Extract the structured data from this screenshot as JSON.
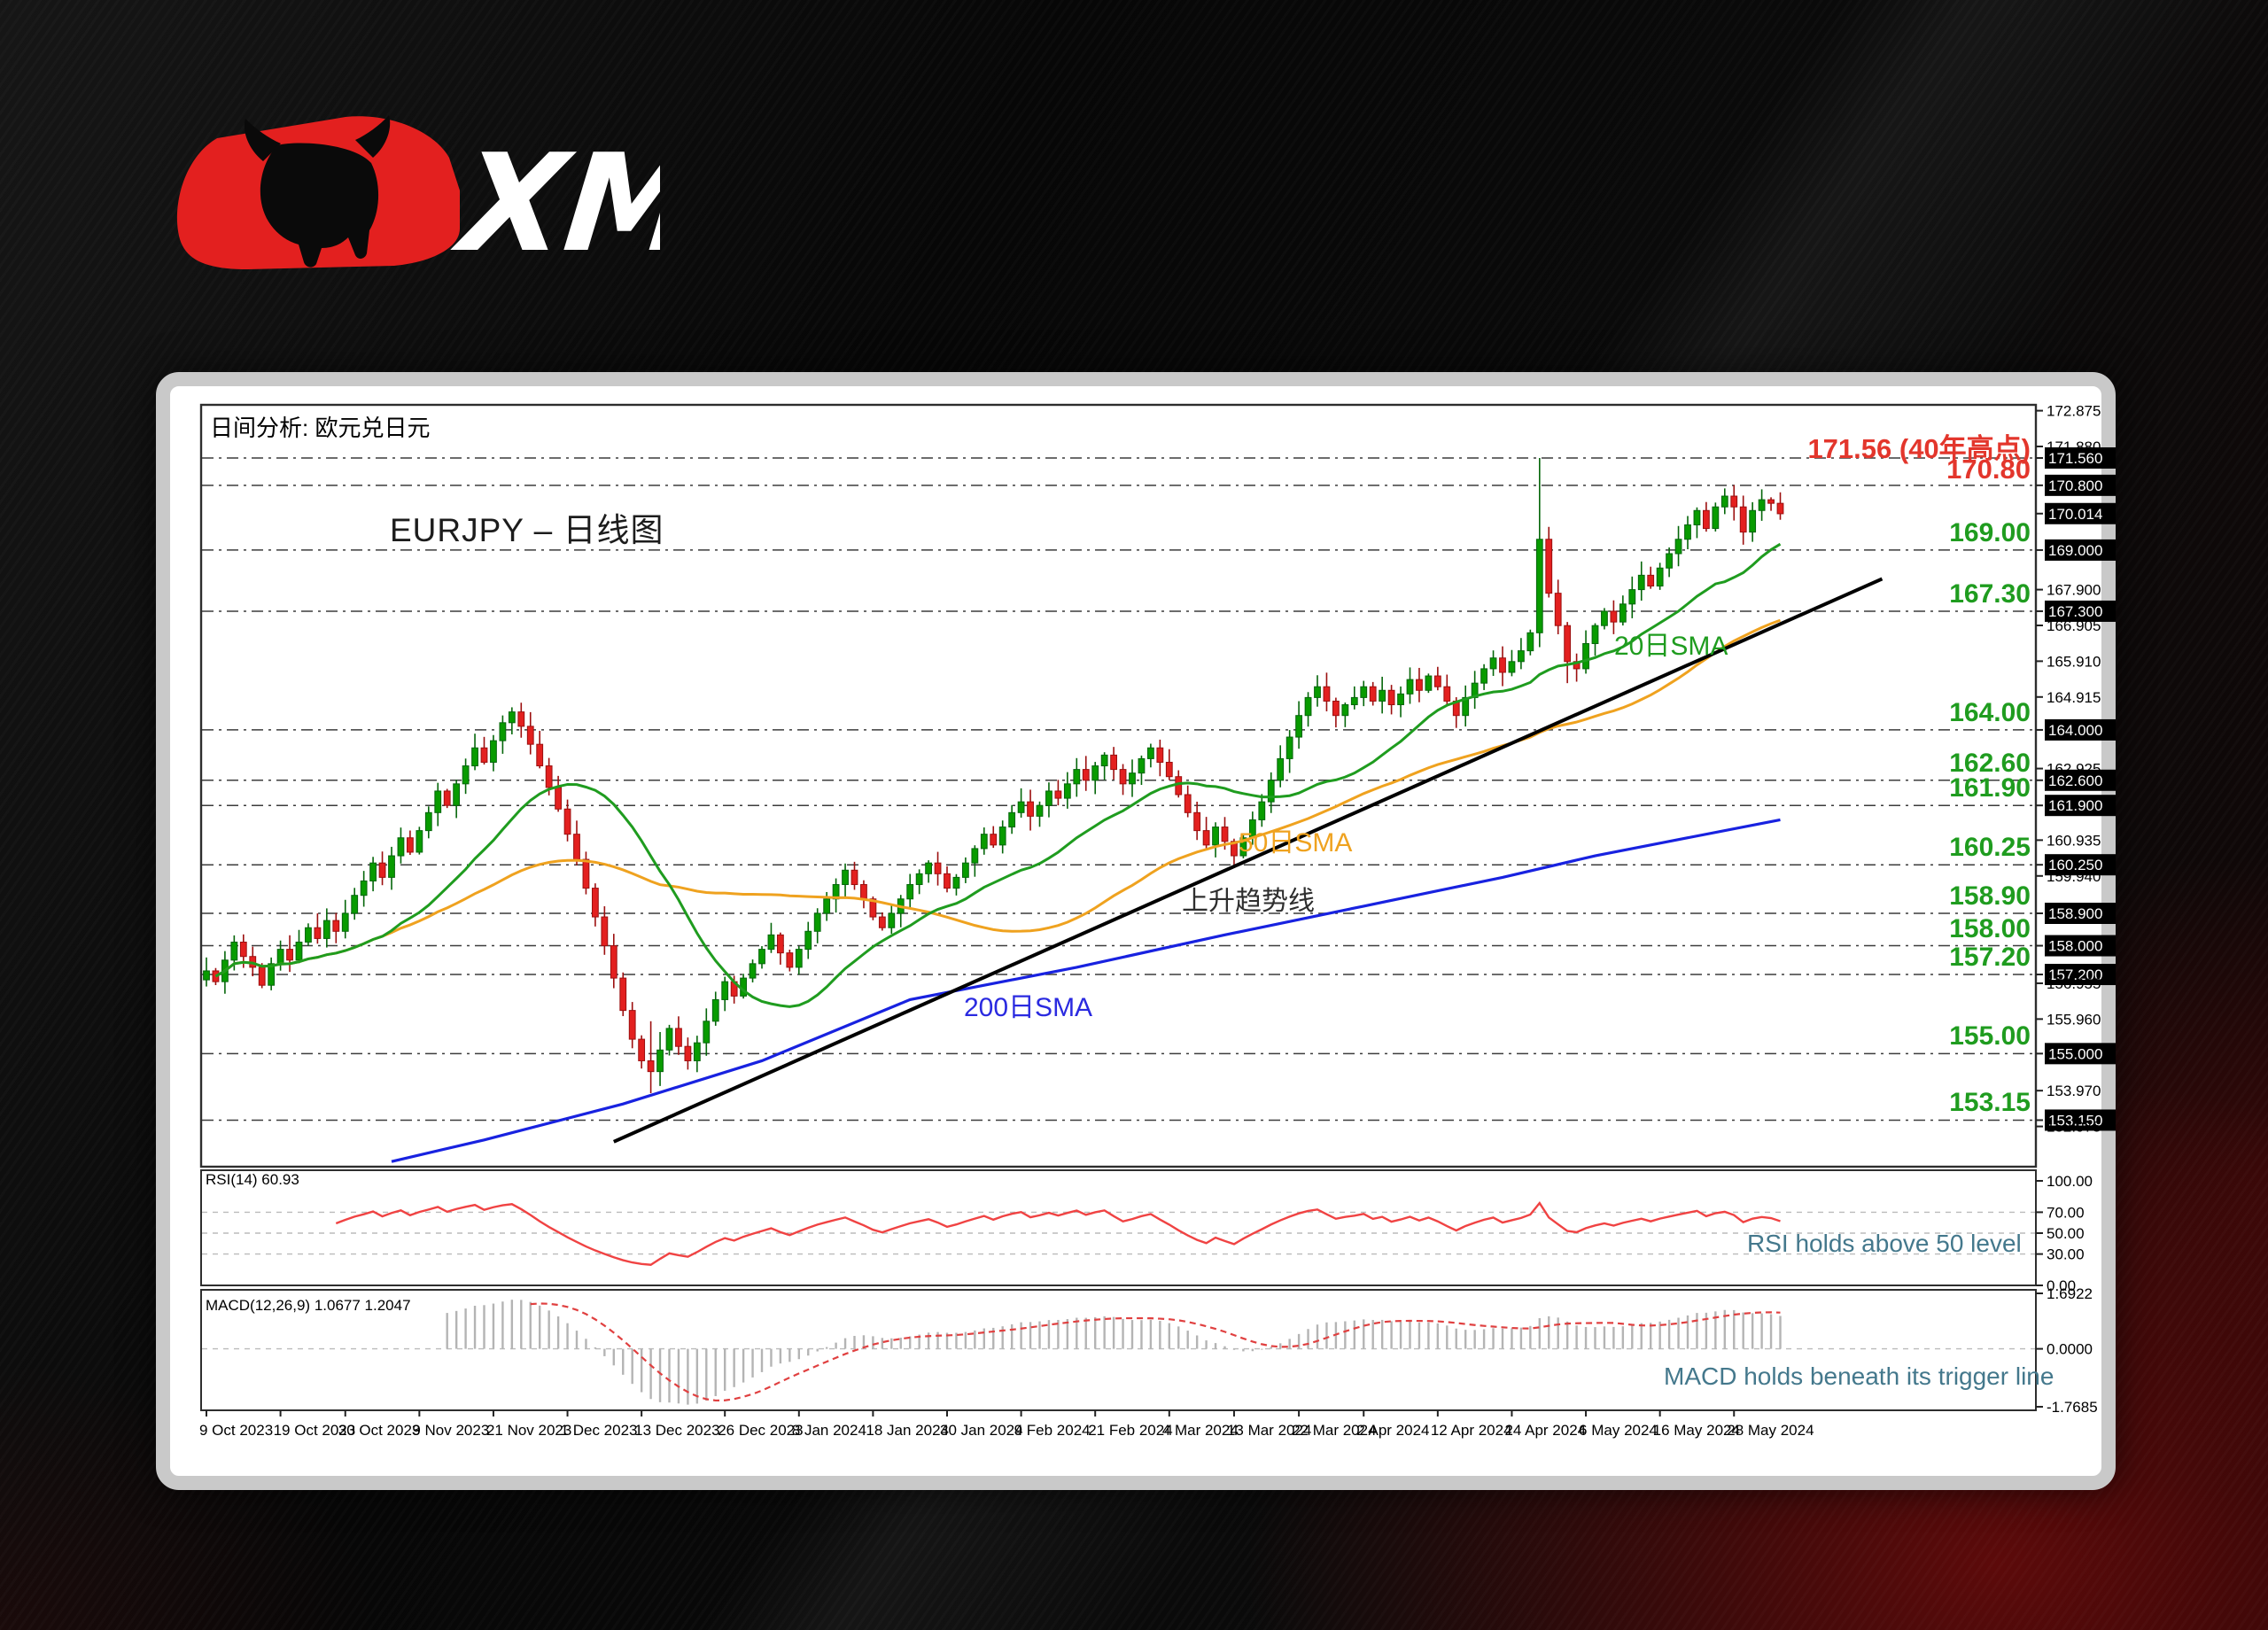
{
  "brand": {
    "name": "XM",
    "logo_mark": "bull-icon",
    "accent_red": "#e3201f"
  },
  "header": {
    "analysis_label": "日间分析: 欧元兑日元",
    "chart_title": "EURJPY – 日线图"
  },
  "annotations": {
    "sma20": "20日SMA",
    "sma50": "50日SMA",
    "sma200": "200日SMA",
    "trendline": "上升趋势线",
    "rsi_note": "RSI holds above 50 level",
    "macd_note": "MACD holds beneath its trigger line"
  },
  "indicators": {
    "rsi_label": "RSI(14) 60.93",
    "macd_label": "MACD(12,26,9) 1.0677 1.2047"
  },
  "levels": [
    {
      "text": "171.56 (40年高点)",
      "price": 171.56,
      "color": "red"
    },
    {
      "text": "170.80",
      "price": 170.8,
      "color": "red"
    },
    {
      "text": "169.00",
      "price": 169.0,
      "color": "green"
    },
    {
      "text": "167.30",
      "price": 167.3,
      "color": "green"
    },
    {
      "text": "164.00",
      "price": 164.0,
      "color": "green"
    },
    {
      "text": "162.60",
      "price": 162.6,
      "color": "green"
    },
    {
      "text": "161.90",
      "price": 161.9,
      "color": "green"
    },
    {
      "text": "160.25",
      "price": 160.25,
      "color": "green"
    },
    {
      "text": "158.90",
      "price": 158.9,
      "color": "green"
    },
    {
      "text": "158.00",
      "price": 158.0,
      "color": "green"
    },
    {
      "text": "157.20",
      "price": 157.2,
      "color": "green"
    },
    {
      "text": "155.00",
      "price": 155.0,
      "color": "green"
    },
    {
      "text": "153.15",
      "price": 153.15,
      "color": "green"
    }
  ],
  "chart_data": {
    "type": "candlestick",
    "symbol": "EURJPY",
    "timeframe": "daily",
    "grid_levels": [
      171.56,
      170.8,
      169.0,
      167.3,
      164.0,
      162.6,
      161.9,
      160.25,
      158.9,
      158.0,
      157.2,
      155.0,
      153.15
    ],
    "price_ticks": [
      {
        "label": "172.875",
        "price": 172.875,
        "badge": false
      },
      {
        "label": "171.880",
        "price": 171.88,
        "badge": false
      },
      {
        "label": "171.560",
        "price": 171.56,
        "badge": true
      },
      {
        "label": "170.800",
        "price": 170.8,
        "badge": true
      },
      {
        "label": "170.014",
        "price": 170.014,
        "badge": true
      },
      {
        "label": "169.000",
        "price": 169.0,
        "badge": true
      },
      {
        "label": "167.900",
        "price": 167.9,
        "badge": false
      },
      {
        "label": "167.300",
        "price": 167.3,
        "badge": true
      },
      {
        "label": "166.905",
        "price": 166.905,
        "badge": false
      },
      {
        "label": "165.910",
        "price": 165.91,
        "badge": false
      },
      {
        "label": "164.915",
        "price": 164.915,
        "badge": false
      },
      {
        "label": "164.000",
        "price": 164.0,
        "badge": true
      },
      {
        "label": "162.925",
        "price": 162.925,
        "badge": false
      },
      {
        "label": "162.600",
        "price": 162.6,
        "badge": true
      },
      {
        "label": "161.900",
        "price": 161.9,
        "badge": true
      },
      {
        "label": "160.935",
        "price": 160.935,
        "badge": false
      },
      {
        "label": "160.250",
        "price": 160.25,
        "badge": true
      },
      {
        "label": "159.940",
        "price": 159.94,
        "badge": false
      },
      {
        "label": "158.900",
        "price": 158.9,
        "badge": true
      },
      {
        "label": "158.000",
        "price": 158.0,
        "badge": true
      },
      {
        "label": "157.200",
        "price": 157.2,
        "badge": true
      },
      {
        "label": "156.955",
        "price": 156.955,
        "badge": false
      },
      {
        "label": "155.960",
        "price": 155.96,
        "badge": false
      },
      {
        "label": "155.000",
        "price": 155.0,
        "badge": true
      },
      {
        "label": "153.970",
        "price": 153.97,
        "badge": false
      },
      {
        "label": "153.150",
        "price": 153.15,
        "badge": true
      },
      {
        "label": "152.975",
        "price": 152.975,
        "badge": false
      }
    ],
    "rsi_ticks": [
      {
        "label": "100.00",
        "value": 100
      },
      {
        "label": "70.00",
        "value": 70
      },
      {
        "label": "50.00",
        "value": 50
      },
      {
        "label": "30.00",
        "value": 30
      },
      {
        "label": "0.00",
        "value": 0
      }
    ],
    "macd_ticks": [
      {
        "label": "1.6922",
        "value": 1.6922
      },
      {
        "label": "0.0000",
        "value": 0.0
      },
      {
        "label": "-1.7685",
        "value": -1.7685
      }
    ],
    "x_ticks": [
      {
        "label": "9 Oct 2023",
        "day": 0
      },
      {
        "label": "19 Oct 2023",
        "day": 8
      },
      {
        "label": "30 Oct 2023",
        "day": 15
      },
      {
        "label": "9 Nov 2023",
        "day": 23
      },
      {
        "label": "21 Nov 2023",
        "day": 31
      },
      {
        "label": "1 Dec 2023",
        "day": 39
      },
      {
        "label": "13 Dec 2023",
        "day": 47
      },
      {
        "label": "26 Dec 2023",
        "day": 56
      },
      {
        "label": "8 Jan 2024",
        "day": 64
      },
      {
        "label": "18 Jan 2024",
        "day": 72
      },
      {
        "label": "30 Jan 2024",
        "day": 80
      },
      {
        "label": "9 Feb 2024",
        "day": 88
      },
      {
        "label": "21 Feb 2024",
        "day": 96
      },
      {
        "label": "4 Mar 2024",
        "day": 104
      },
      {
        "label": "13 Mar 2024",
        "day": 111
      },
      {
        "label": "22 Mar 2024",
        "day": 118
      },
      {
        "label": "2 Apr 2024",
        "day": 125
      },
      {
        "label": "12 Apr 2024",
        "day": 133
      },
      {
        "label": "24 Apr 2024",
        "day": 141
      },
      {
        "label": "6 May 2024",
        "day": 149
      },
      {
        "label": "16 May 2024",
        "day": 157
      },
      {
        "label": "28 May 2024",
        "day": 165
      }
    ],
    "closes": [
      157.3,
      157.0,
      157.6,
      158.1,
      157.7,
      157.4,
      156.9,
      157.5,
      157.9,
      157.6,
      158.1,
      158.5,
      158.2,
      158.7,
      158.4,
      158.9,
      159.4,
      159.8,
      160.3,
      159.9,
      160.5,
      161.0,
      160.6,
      161.2,
      161.7,
      162.3,
      161.9,
      162.5,
      163.0,
      163.5,
      163.1,
      163.7,
      164.2,
      164.5,
      164.1,
      163.6,
      163.0,
      162.4,
      161.8,
      161.1,
      160.4,
      159.6,
      158.8,
      158.0,
      157.1,
      156.2,
      155.4,
      154.8,
      154.5,
      155.1,
      155.7,
      155.2,
      154.8,
      155.3,
      155.9,
      156.5,
      157.0,
      156.6,
      157.1,
      157.5,
      157.9,
      158.3,
      157.8,
      157.4,
      157.9,
      158.4,
      158.9,
      159.3,
      159.7,
      160.1,
      159.7,
      159.3,
      158.8,
      158.5,
      158.9,
      159.3,
      159.7,
      160.0,
      160.3,
      160.0,
      159.6,
      159.9,
      160.3,
      160.7,
      161.1,
      160.8,
      161.3,
      161.7,
      162.0,
      161.6,
      161.9,
      162.3,
      162.1,
      162.5,
      162.9,
      162.6,
      163.0,
      163.3,
      162.9,
      162.5,
      162.8,
      163.2,
      163.5,
      163.1,
      162.7,
      162.2,
      161.7,
      161.2,
      160.8,
      161.3,
      160.9,
      160.5,
      161.0,
      161.5,
      162.0,
      162.6,
      163.2,
      163.8,
      164.4,
      164.9,
      165.2,
      164.8,
      164.4,
      164.7,
      164.9,
      165.2,
      164.8,
      165.1,
      164.7,
      165.0,
      165.4,
      165.1,
      165.5,
      165.2,
      164.8,
      164.4,
      164.9,
      165.3,
      165.7,
      166.0,
      165.6,
      165.9,
      166.2,
      166.7,
      169.3,
      167.8,
      166.9,
      165.9,
      165.7,
      166.4,
      166.9,
      167.3,
      167.0,
      167.5,
      167.9,
      168.3,
      168.0,
      168.5,
      168.9,
      169.3,
      169.7,
      170.1,
      169.6,
      170.2,
      170.5,
      170.2,
      169.5,
      170.1,
      170.4,
      170.3,
      170.01
    ],
    "wick_overrides": {
      "48": [
        155.9,
        153.9
      ],
      "49": [
        155.6,
        154.1
      ],
      "144": [
        171.56,
        166.3
      ],
      "147": [
        167.0,
        165.3
      ]
    },
    "current_price": 170.014,
    "high_40yr": 171.56,
    "sma200_anchors": [
      [
        20,
        152.0
      ],
      [
        30,
        152.6
      ],
      [
        45,
        153.6
      ],
      [
        60,
        154.8
      ],
      [
        76,
        156.5
      ],
      [
        94,
        157.4
      ],
      [
        110,
        158.3
      ],
      [
        125,
        159.1
      ],
      [
        140,
        159.9
      ],
      [
        150,
        160.5
      ],
      [
        160,
        161.0
      ],
      [
        170,
        161.5
      ]
    ],
    "trendline_anchors": [
      [
        44,
        152.55
      ],
      [
        181,
        168.2
      ]
    ],
    "rsi_period": 14,
    "macd_params": [
      12,
      26,
      9
    ],
    "colors": {
      "up": "#089b00",
      "up_stroke": "#05660a",
      "down": "#e3201f",
      "down_stroke": "#9c0f0f",
      "sma20": "#1f9c1f",
      "sma50": "#efa21f",
      "sma200": "#1822e0",
      "trend": "#000000",
      "grid": "#3c3c3c",
      "rsi_line": "#f04343",
      "macd_hist": "#b4b4b4",
      "macd_signal": "#e04040",
      "level_red": "#e3362c",
      "level_green": "#1f9c1f",
      "note": "#44788c"
    }
  }
}
